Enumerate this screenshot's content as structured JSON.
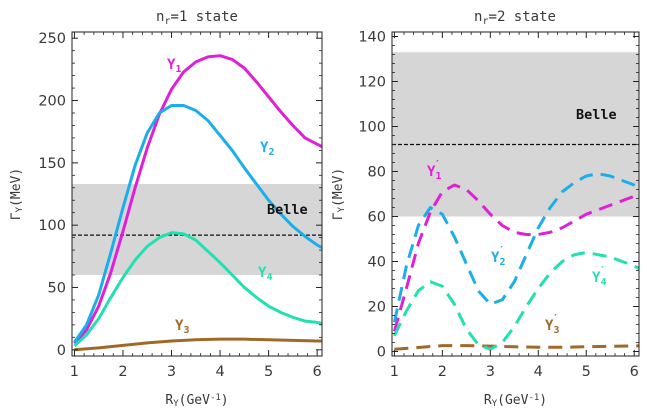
{
  "chart_data": [
    {
      "type": "line",
      "title": "n_r=1 state",
      "title_main": "n",
      "title_sub": "r",
      "title_rest": "=1 state",
      "xlabel_main": "R",
      "xlabel_sub": "Y",
      "xlabel_rest": "(GeV",
      "xlabel_sup": "-1",
      "xlabel_end": ")",
      "ylabel_main": "Γ",
      "ylabel_sub": "Y",
      "ylabel_rest": "(MeV)",
      "xlim": [
        0.95,
        6.1
      ],
      "ylim": [
        -5,
        255
      ],
      "xticks": [
        1,
        2,
        3,
        4,
        5,
        6
      ],
      "yticks": [
        0,
        50,
        100,
        150,
        200,
        250
      ],
      "xtick_labels": [
        "1",
        "2",
        "3",
        "4",
        "5",
        "6"
      ],
      "ytick_labels": [
        "0",
        "50",
        "100",
        "150",
        "200",
        "250"
      ],
      "band": {
        "low": 60,
        "high": 133,
        "color": "#d6d6d6"
      },
      "reference": {
        "y": 92,
        "label": "Belle"
      },
      "series": [
        {
          "name": "Y1",
          "label_main": "Y",
          "label_sub": "1",
          "prime": false,
          "color": "#e020d8",
          "dashed": false,
          "x": [
            1.0,
            1.25,
            1.5,
            1.75,
            2.0,
            2.25,
            2.5,
            2.75,
            3.0,
            3.25,
            3.5,
            3.75,
            4.0,
            4.25,
            4.5,
            4.75,
            5.0,
            5.25,
            5.5,
            5.75,
            6.0,
            6.1
          ],
          "y": [
            5,
            16,
            35,
            62,
            95,
            130,
            162,
            189,
            209,
            223,
            231,
            235,
            236,
            233,
            226,
            215,
            203,
            191,
            180,
            170,
            165,
            163
          ]
        },
        {
          "name": "Y2",
          "label_main": "Y",
          "label_sub": "2",
          "prime": false,
          "color": "#1aaeea",
          "dashed": false,
          "x": [
            1.0,
            1.25,
            1.5,
            1.75,
            2.0,
            2.25,
            2.5,
            2.75,
            3.0,
            3.25,
            3.5,
            3.75,
            4.0,
            4.25,
            4.5,
            4.75,
            5.0,
            5.25,
            5.5,
            5.75,
            6.0,
            6.1
          ],
          "y": [
            6,
            20,
            44,
            78,
            114,
            148,
            174,
            190,
            196,
            196,
            192,
            184,
            172,
            160,
            146,
            133,
            120,
            109,
            99,
            91,
            84,
            82
          ]
        },
        {
          "name": "Y3",
          "label_main": "Y",
          "label_sub": "3",
          "prime": false,
          "color": "#a0692a",
          "dashed": false,
          "x": [
            1.0,
            1.5,
            2.0,
            2.5,
            3.0,
            3.5,
            4.0,
            4.5,
            5.0,
            5.5,
            6.0,
            6.1
          ],
          "y": [
            0,
            1.5,
            3.5,
            5.5,
            7,
            8,
            8.5,
            8.5,
            8,
            7.5,
            7,
            7
          ]
        },
        {
          "name": "Y4",
          "label_main": "Y",
          "label_sub": "4",
          "prime": false,
          "color": "#22e0b0",
          "dashed": false,
          "x": [
            1.0,
            1.25,
            1.5,
            1.75,
            2.0,
            2.25,
            2.5,
            2.75,
            3.0,
            3.25,
            3.5,
            3.75,
            4.0,
            4.25,
            4.5,
            4.75,
            5.0,
            5.25,
            5.5,
            5.75,
            6.0,
            6.1
          ],
          "y": [
            3,
            12,
            25,
            42,
            58,
            72,
            83,
            90,
            94,
            93,
            88,
            79,
            70,
            60,
            50,
            42,
            35,
            30,
            26,
            23,
            22,
            21
          ]
        }
      ]
    },
    {
      "type": "line",
      "title": "n_r=2 state",
      "title_main": "n",
      "title_sub": "r",
      "title_rest": "=2 state",
      "xlabel_main": "R",
      "xlabel_sub": "Y",
      "xlabel_rest": "(GeV",
      "xlabel_sup": "-1",
      "xlabel_end": ")",
      "ylabel_main": "Γ",
      "ylabel_sub": "Y",
      "ylabel_rest": "(MeV)",
      "xlim": [
        0.95,
        6.1
      ],
      "ylim": [
        -2,
        142
      ],
      "xticks": [
        1,
        2,
        3,
        4,
        5,
        6
      ],
      "yticks": [
        0,
        20,
        40,
        60,
        80,
        100,
        120,
        140
      ],
      "xtick_labels": [
        "1",
        "2",
        "3",
        "4",
        "5",
        "6"
      ],
      "ytick_labels": [
        "0",
        "20",
        "40",
        "60",
        "80",
        "100",
        "120",
        "140"
      ],
      "band": {
        "low": 60,
        "high": 133,
        "color": "#d6d6d6"
      },
      "reference": {
        "y": 92,
        "label": "Belle"
      },
      "series": [
        {
          "name": "Y1'",
          "label_main": "Y",
          "label_sub": "1",
          "prime": true,
          "color": "#e020d8",
          "dashed": true,
          "x": [
            1.0,
            1.25,
            1.5,
            1.75,
            2.0,
            2.25,
            2.5,
            2.75,
            3.0,
            3.25,
            3.5,
            3.75,
            4.0,
            4.25,
            4.5,
            4.75,
            5.0,
            5.25,
            5.5,
            5.75,
            6.0,
            6.1
          ],
          "y": [
            9,
            28,
            48,
            62,
            71,
            74,
            72,
            67,
            61,
            56,
            53,
            52,
            52,
            53,
            55,
            58,
            61,
            63,
            65,
            67,
            69,
            70
          ]
        },
        {
          "name": "Y2'",
          "label_main": "Y",
          "label_sub": "2",
          "prime": true,
          "color": "#1aaeea",
          "dashed": true,
          "x": [
            1.0,
            1.25,
            1.5,
            1.75,
            2.0,
            2.25,
            2.5,
            2.75,
            3.0,
            3.25,
            3.5,
            3.75,
            4.0,
            4.25,
            4.5,
            4.75,
            5.0,
            5.25,
            5.5,
            5.75,
            6.0,
            6.1
          ],
          "y": [
            13,
            38,
            56,
            64,
            61,
            51,
            39,
            27,
            21,
            23,
            31,
            43,
            55,
            64,
            71,
            75,
            78,
            79,
            78,
            76,
            74,
            73
          ]
        },
        {
          "name": "Y3'",
          "label_main": "Y",
          "label_sub": "3",
          "prime": true,
          "color": "#a0692a",
          "dashed": true,
          "x": [
            1.0,
            1.5,
            2.0,
            2.5,
            3.0,
            3.5,
            4.0,
            4.5,
            5.0,
            5.5,
            6.0,
            6.1
          ],
          "y": [
            1,
            1.8,
            2.6,
            2.6,
            2.4,
            2.1,
            1.9,
            1.9,
            2.1,
            2.3,
            2.5,
            2.5
          ]
        },
        {
          "name": "Y4'",
          "label_main": "Y",
          "label_sub": "4",
          "prime": true,
          "color": "#22e0b0",
          "dashed": true,
          "x": [
            1.0,
            1.25,
            1.5,
            1.75,
            2.0,
            2.25,
            2.5,
            2.75,
            3.0,
            3.25,
            3.5,
            3.75,
            4.0,
            4.25,
            4.5,
            4.75,
            5.0,
            5.25,
            5.5,
            5.75,
            6.0,
            6.1
          ],
          "y": [
            7,
            18,
            27,
            31,
            29,
            21,
            10,
            3,
            1,
            4,
            11,
            20,
            28,
            35,
            40,
            43,
            44,
            43,
            42,
            40,
            38,
            37
          ]
        }
      ]
    }
  ]
}
